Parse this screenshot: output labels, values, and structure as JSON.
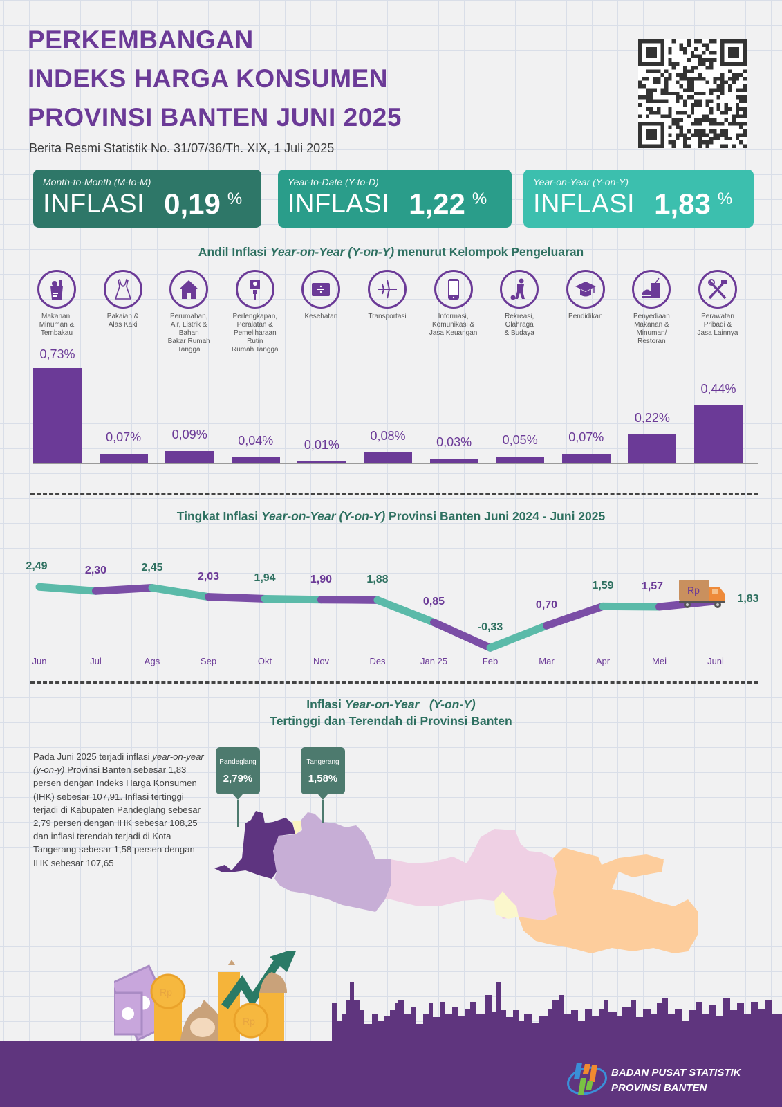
{
  "header": {
    "title_lines": [
      "PERKEMBANGAN",
      "INDEKS HARGA KONSUMEN",
      "PROVINSI BANTEN JUNI 2025"
    ],
    "subtitle": "Berita Resmi Statistik No. 31/07/36/Th. XIX, 1 Juli 2025",
    "qr_code_icon": "qr-code"
  },
  "kpis": [
    {
      "label": "Month-to-Month (M-to-M)",
      "word": "INFLASI",
      "value": "0,19",
      "unit": "%",
      "color": "#2e7768"
    },
    {
      "label": "Year-to-Date (Y-to-D)",
      "word": "INFLASI",
      "value": "1,22",
      "unit": "%",
      "color": "#2a9d8a"
    },
    {
      "label": "Year-on-Year (Y-on-Y)",
      "word": "INFLASI",
      "value": "1,83",
      "unit": "%",
      "color": "#3cbfae"
    }
  ],
  "andil_section": {
    "title_pre": "Andil Inflasi ",
    "title_italic": "Year-on-Year (Y-on-Y)",
    "title_post": " menurut Kelompok Pengeluaran"
  },
  "line_section": {
    "title_pre": "Tingkat Inflasi ",
    "title_italic": "Year-on-Year (Y-on-Y)",
    "title_post": " Provinsi Banten Juni 2024 - Juni 2025"
  },
  "map_section": {
    "title_line1_pre": "Inflasi ",
    "title_line1_italic": "Year-on-Year   (Y-on-Y)",
    "title_line2": "Tertinggi dan Terendah di Provinsi Banten",
    "paragraph_pre": "Pada Juni 2025 terjadi inflasi ",
    "paragraph_italic": "year-on-year (y-on-y)",
    "paragraph_post": " Provinsi Banten sebesar 1,83 persen dengan Indeks Harga Konsumen (IHK) sebesar 107,91. Inflasi tertinggi terjadi di Kabupaten Pandeglang sebesar 2,79 persen dengan IHK sebesar 108,25 dan inflasi terendah terjadi di Kota Tangerang sebesar 1,58 persen dengan IHK sebesar 107,65",
    "callouts": [
      {
        "name": "Pandeglang",
        "value": "2,79%"
      },
      {
        "name": "Tangerang",
        "value": "1,58%"
      }
    ],
    "map_colors": {
      "banten": "#5e3480",
      "tangerang": "#fbf3c0",
      "jabar": "#c7aed6",
      "jateng": "#efd0e4",
      "diy": "#fbf7cc",
      "jatim": "#fdcd9c"
    }
  },
  "footer": {
    "org_line1": "BADAN PUSAT STATISTIK",
    "org_line2": "PROVINSI BANTEN"
  },
  "chart_data": [
    {
      "type": "bar",
      "title": "Andil Inflasi Year-on-Year (Y-on-Y) menurut Kelompok Pengeluaran",
      "categories": [
        "Makanan, Minuman & Tembakau",
        "Pakaian & Alas Kaki",
        "Perumahan, Air, Listrik & Bahan Bakar Rumah Tangga",
        "Perlengkapan, Peralatan & Pemeliharaan Rutin Rumah Tangga",
        "Kesehatan",
        "Transportasi",
        "Informasi, Komunikasi & Jasa Keuangan",
        "Rekreasi, Olahraga & Budaya",
        "Pendidikan",
        "Penyediaan Makanan & Minuman/ Restoran",
        "Perawatan Pribadi & Jasa Lainnya"
      ],
      "category_lines": [
        [
          "Makanan,",
          "Minuman &",
          "Tembakau"
        ],
        [
          "Pakaian &",
          "Alas Kaki"
        ],
        [
          "Perumahan,",
          "Air, Listrik &",
          "Bahan",
          "Bakar Rumah",
          "Tangga"
        ],
        [
          "Perlengkapan,",
          "Peralatan &",
          "Pemeliharaan",
          "Rutin",
          "Rumah Tangga"
        ],
        [
          "Kesehatan"
        ],
        [
          "Transportasi"
        ],
        [
          "Informasi,",
          "Komunikasi &",
          "Jasa Keuangan"
        ],
        [
          "Rekreasi,",
          "Olahraga",
          "& Budaya"
        ],
        [
          "Pendidikan"
        ],
        [
          "Penyediaan",
          "Makanan &",
          "Minuman/",
          "Restoran"
        ],
        [
          "Perawatan",
          "Pribadi &",
          "Jasa Lainnya"
        ]
      ],
      "icons": [
        "grocery-bag-icon",
        "dress-icon",
        "house-icon",
        "plug-icon",
        "medical-kit-icon",
        "airplane-icon",
        "smartphone-icon",
        "football-player-icon",
        "graduation-cap-icon",
        "fast-food-icon",
        "scissors-comb-icon"
      ],
      "values": [
        0.73,
        0.07,
        0.09,
        0.04,
        0.01,
        0.08,
        0.03,
        0.05,
        0.07,
        0.22,
        0.44
      ],
      "labels": [
        "0,73%",
        "0,07%",
        "0,09%",
        "0,04%",
        "0,01%",
        "0,08%",
        "0,03%",
        "0,05%",
        "0,07%",
        "0,22%",
        "0,44%"
      ],
      "ylabel": "%",
      "grid": false,
      "color": "#6b3a97"
    },
    {
      "type": "line",
      "title": "Tingkat Inflasi Year-on-Year (Y-on-Y) Provinsi Banten Juni 2024 - Juni 2025",
      "x": [
        "Jun",
        "Jul",
        "Ags",
        "Sep",
        "Okt",
        "Nov",
        "Des",
        "Jan 25",
        "Feb",
        "Mar",
        "Apr",
        "Mei",
        "Juni"
      ],
      "values": [
        2.49,
        2.3,
        2.45,
        2.03,
        1.94,
        1.9,
        1.88,
        0.85,
        -0.33,
        0.7,
        1.59,
        1.57,
        1.83
      ],
      "labels": [
        "2,49",
        "2,30",
        "2,45",
        "2,03",
        "1,94",
        "1,90",
        "1,88",
        "0,85",
        "-0,33",
        "0,70",
        "1,59",
        "1,57",
        "1,83"
      ],
      "series_colors": [
        "#5bbaa9",
        "#7b4ea6"
      ],
      "grid": false
    }
  ]
}
